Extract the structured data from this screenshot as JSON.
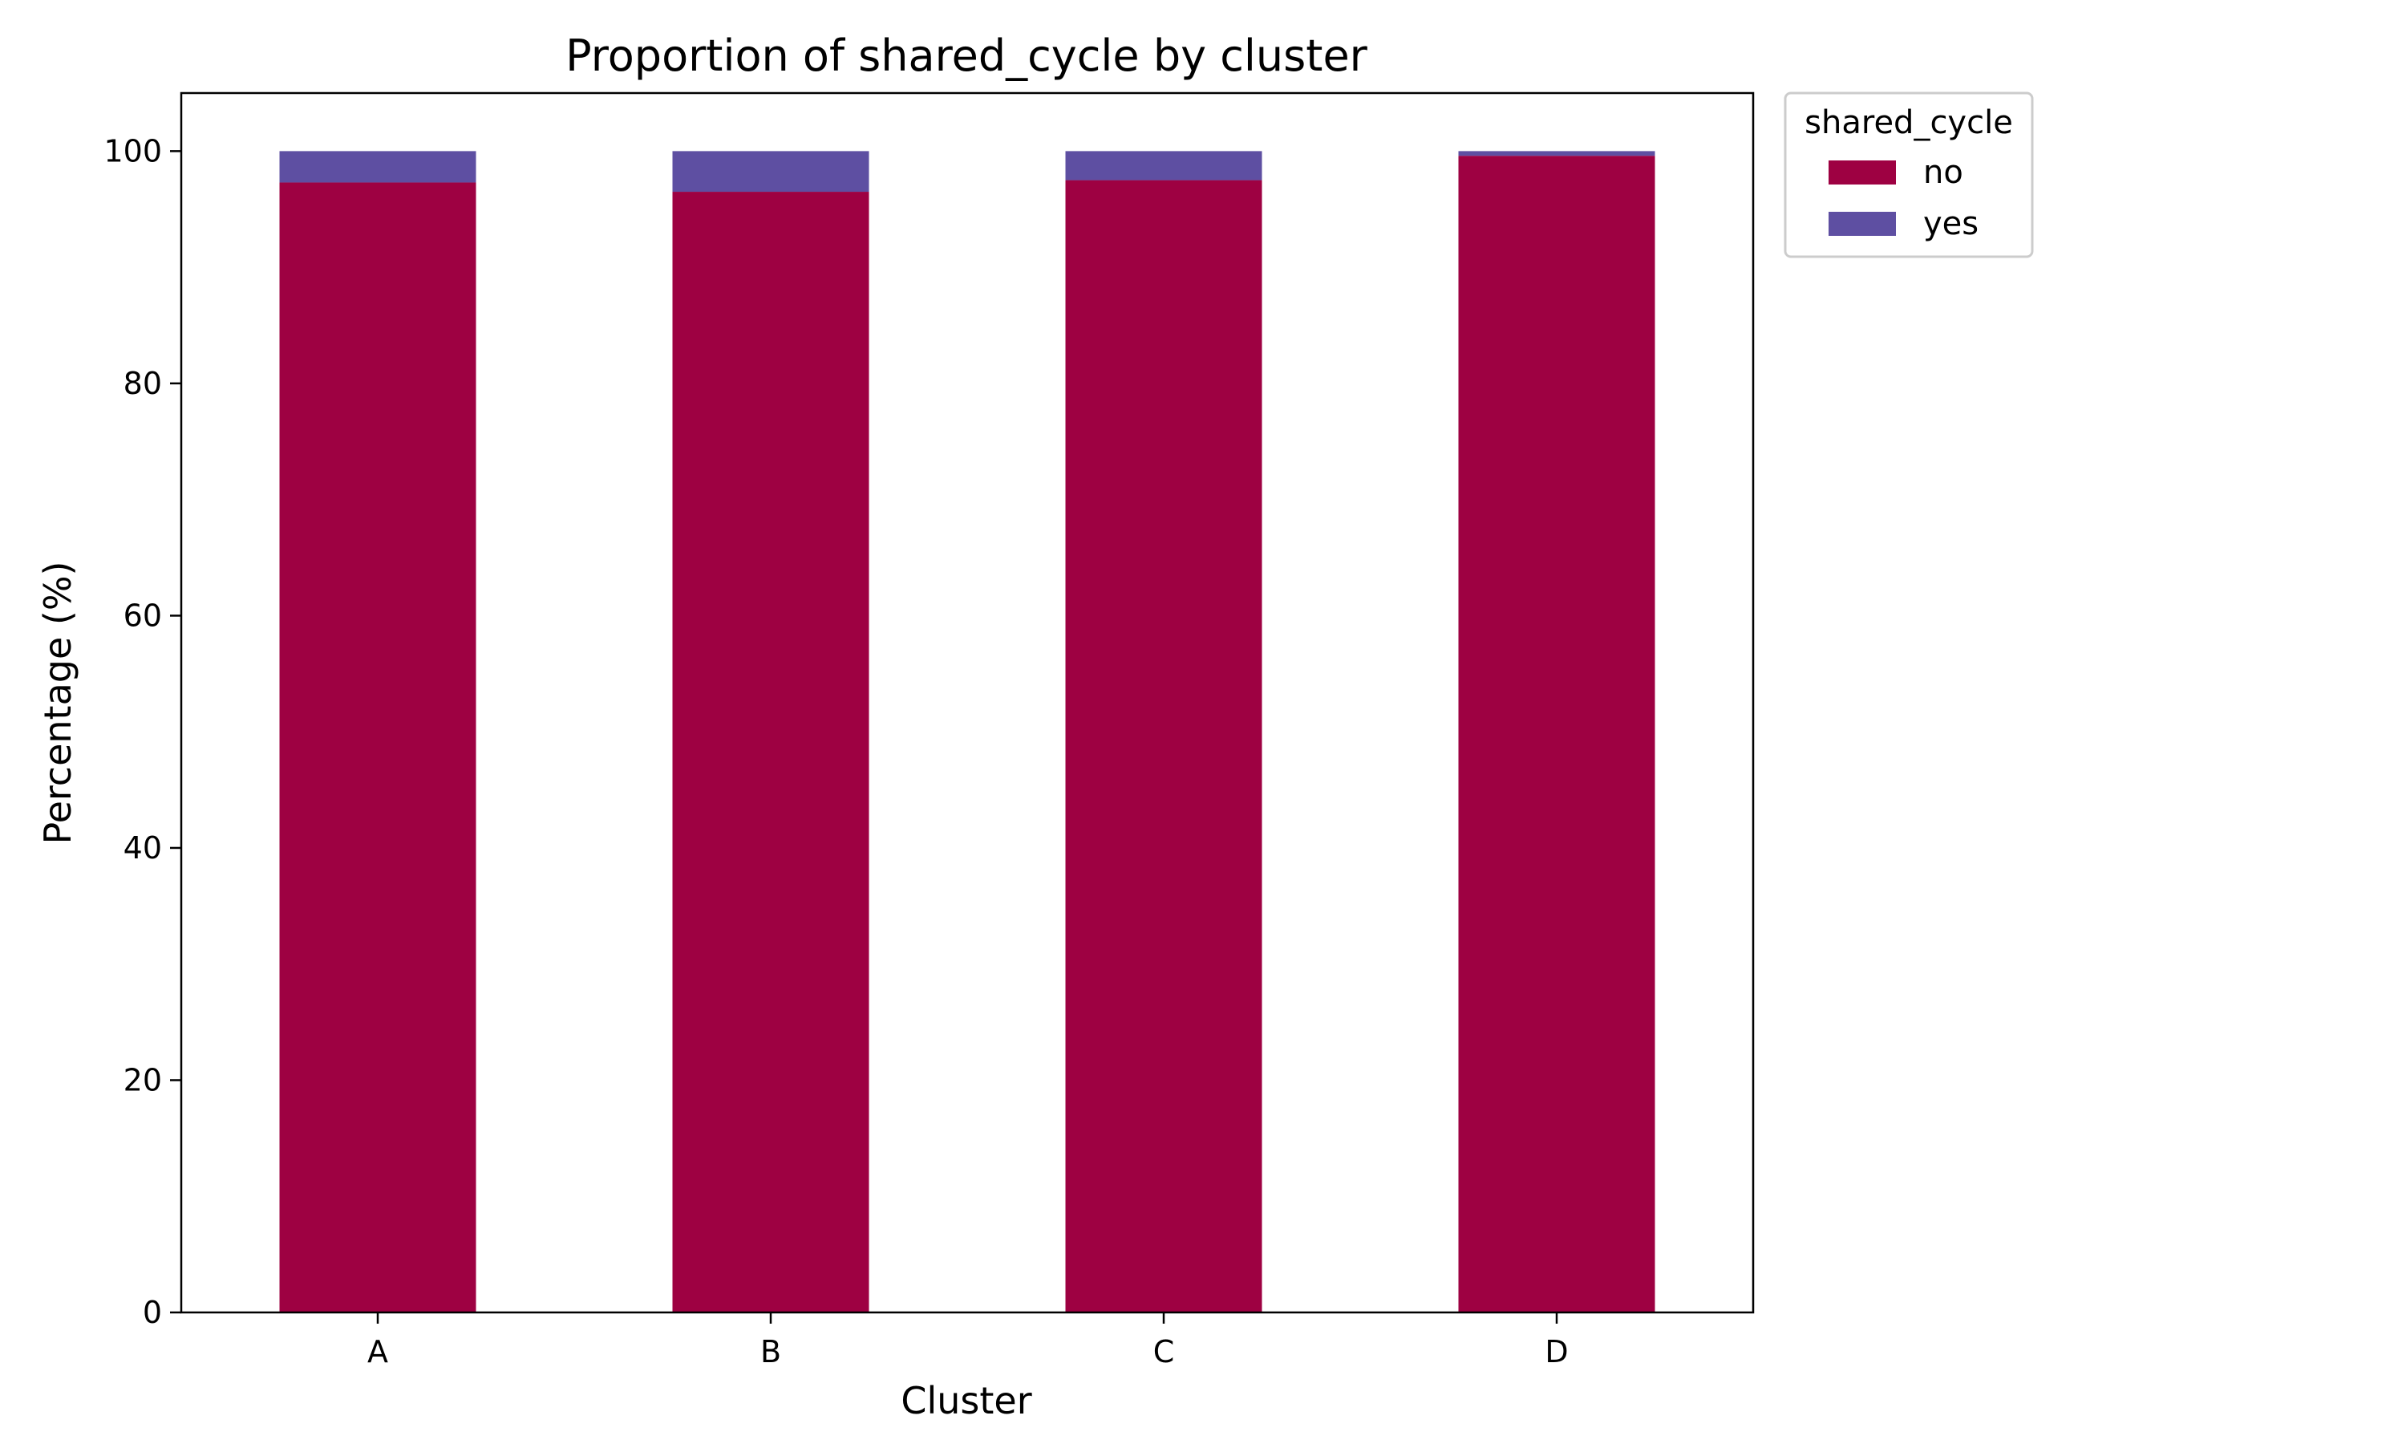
{
  "chart_data": {
    "type": "bar",
    "stacked": true,
    "title": "Proportion of shared_cycle by cluster",
    "xlabel": "Cluster",
    "ylabel": "Percentage (%)",
    "categories": [
      "A",
      "B",
      "C",
      "D"
    ],
    "series": [
      {
        "name": "no",
        "color": "#9e0142",
        "values": [
          97.3,
          96.5,
          97.5,
          99.6
        ]
      },
      {
        "name": "yes",
        "color": "#5e4fa2",
        "values": [
          2.7,
          3.5,
          2.5,
          0.4
        ]
      }
    ],
    "ylim": [
      0,
      105
    ],
    "yticks": [
      0,
      20,
      40,
      60,
      80,
      100
    ],
    "grid": false,
    "legend": {
      "title": "shared_cycle",
      "placement": "outside upper right"
    }
  }
}
